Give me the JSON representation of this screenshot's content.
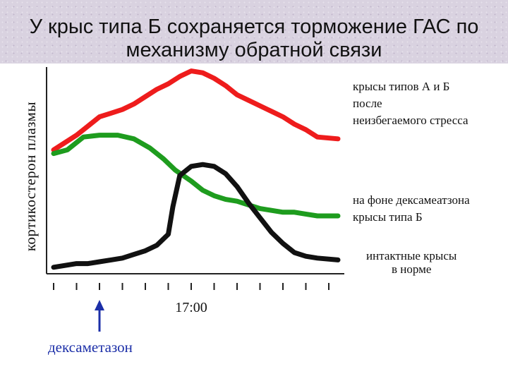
{
  "slide": {
    "title_line1": "У крыс типа Б сохраняется торможение ГАС по",
    "title_line2": "механизму обратной связи"
  },
  "chart_data": {
    "type": "line",
    "title": "",
    "ylabel": "кортикостерон плазмы",
    "xlabel": "",
    "x_ticks": 13,
    "x_tick_labels": [
      {
        "index": 6,
        "label": "17:00"
      }
    ],
    "grid": false,
    "annotation": {
      "label": "дексаметазон",
      "tick_index": 2,
      "arrow_color": "#1c2fa8"
    },
    "series": [
      {
        "name_lines": [
          "крысы типов А и Б",
          "после",
          "неизбегаемого стресса"
        ],
        "color": "#ee1c1c",
        "x": [
          0,
          0.5,
          1,
          1.5,
          2,
          2.5,
          3,
          3.5,
          4,
          4.5,
          5,
          5.5,
          6,
          6.5,
          7,
          7.5,
          8,
          8.5,
          9,
          9.5,
          10,
          10.5,
          11,
          11.5,
          12.4
        ],
        "values": [
          56,
          60,
          64,
          69,
          74,
          76,
          78,
          81,
          85,
          89,
          92,
          96,
          99,
          98,
          95,
          91,
          86,
          83,
          80,
          77,
          74,
          70,
          67,
          63,
          62
        ]
      },
      {
        "name_lines": [
          "на фоне дексамеатзона",
          "крысы типа  Б"
        ],
        "color": "#1e9c1e",
        "x": [
          0,
          0.6,
          1.3,
          2,
          2.8,
          3.5,
          4.2,
          4.8,
          5.3,
          6,
          6.5,
          7,
          7.5,
          8,
          8.5,
          9,
          9.5,
          10,
          10.5,
          11,
          11.5,
          12.4
        ],
        "values": [
          54,
          56,
          63,
          64,
          64,
          62,
          57,
          51,
          45,
          39,
          34,
          31,
          29,
          28,
          26,
          24,
          23,
          22,
          22,
          21,
          20,
          20
        ]
      },
      {
        "name_lines": [
          "интактные крысы",
          "в норме"
        ],
        "color": "#111111",
        "x": [
          0,
          0.5,
          1,
          1.5,
          2,
          2.5,
          3,
          3.5,
          4,
          4.5,
          5,
          5.2,
          5.5,
          6,
          6.5,
          7,
          7.5,
          8,
          8.5,
          9,
          9.5,
          10,
          10.5,
          11,
          11.5,
          12.4
        ],
        "values": [
          -8,
          -7,
          -6,
          -6,
          -5,
          -4,
          -3,
          -1,
          1,
          4,
          10,
          25,
          42,
          47,
          48,
          47,
          43,
          36,
          27,
          19,
          11,
          5,
          0,
          -2,
          -3,
          -4
        ]
      }
    ]
  }
}
